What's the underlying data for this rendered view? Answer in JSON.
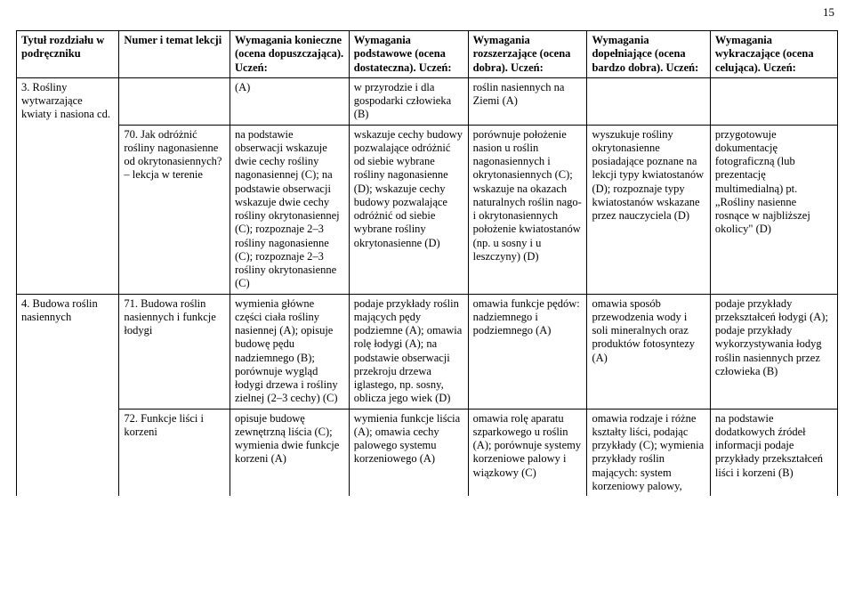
{
  "page_number": "15",
  "headers": {
    "h1": "Tytuł rozdziału w podręczniku",
    "h2": "Numer i temat lekcji",
    "h3": "Wymagania konieczne (ocena dopuszczająca). Uczeń:",
    "h4": "Wymagania podstawowe (ocena dostateczna). Uczeń:",
    "h5": "Wymagania rozszerzające (ocena dobra). Uczeń:",
    "h6": "Wymagania dopełniające (ocena bardzo dobra). Uczeń:",
    "h7": "Wymagania wykraczające (ocena celująca). Uczeń:"
  },
  "r1": {
    "c1": "3. Rośliny wytwarzające kwiaty i nasiona cd.",
    "c3": "(A)",
    "c4": "w przyrodzie i dla gospodarki człowieka (B)",
    "c5": "roślin nasiennych na Ziemi (A)"
  },
  "r2": {
    "c2": "70. Jak odróżnić rośliny nagonasienne od okrytonasiennych? – lekcja w terenie",
    "c3": "na podstawie obserwacji wskazuje dwie cechy rośliny nagonasiennej (C); na podstawie obserwacji wskazuje dwie cechy rośliny okrytonasiennej (C); rozpoznaje 2–3 rośliny nagonasienne (C); rozpoznaje 2–3 rośliny okrytonasienne (C)",
    "c4": "wskazuje cechy budowy pozwalające odróżnić od siebie wybrane rośliny nagonasienne (D); wskazuje cechy budowy pozwalające odróżnić od siebie wybrane rośliny okrytonasienne (D)",
    "c5": "porównuje położenie nasion u roślin nagonasiennych i okrytonasiennych (C); wskazuje na okazach naturalnych roślin nago- i okrytonasiennych położenie kwiatostanów (np. u sosny i u leszczyny) (D)",
    "c6": "wyszukuje rośliny okrytonasienne posiadające poznane na lekcji typy kwiatostanów (D); rozpoznaje typy kwiatostanów wskazane przez nauczyciela (D)",
    "c7": "przygotowuje dokumentację fotograficzną (lub prezentację multimedialną) pt. „Rośliny nasienne rosnące w najbliższej okolicy\" (D)"
  },
  "r3": {
    "c1": "4. Budowa roślin nasiennych",
    "c2": "71. Budowa roślin nasiennych i funkcje łodygi",
    "c3": "wymienia główne części ciała rośliny nasiennej (A); opisuje budowę pędu nadziemnego (B); porównuje wygląd łodygi drzewa i rośliny zielnej (2–3 cechy) (C)",
    "c4": "podaje przykłady roślin mających pędy podziemne (A); omawia rolę łodygi (A); na podstawie obserwacji przekroju drzewa iglastego, np. sosny, oblicza jego wiek (D)",
    "c5": "omawia funkcje pędów: nadziemnego i podziemnego (A)",
    "c6": "omawia sposób przewodzenia wody i soli mineralnych oraz produktów fotosyntezy (A)",
    "c7": "podaje przykłady przekształceń łodygi (A); podaje przykłady wykorzystywania łodyg roślin nasiennych przez człowieka (B)"
  },
  "r4": {
    "c2": "72. Funkcje liści i korzeni",
    "c3": "opisuje budowę zewnętrzną liścia (C); wymienia dwie funkcje korzeni (A)",
    "c4": "wymienia funkcje liścia (A); omawia cechy palowego systemu korzeniowego (A)",
    "c5": "omawia rolę aparatu szparkowego u roślin (A); porównuje systemy korzeniowe palowy i wiązkowy (C)",
    "c6": "omawia rodzaje i różne kształty liści, podając przykłady (C); wymienia przykłady roślin mających: system korzeniowy palowy,",
    "c7": "na podstawie dodatkowych źródeł informacji podaje przykłady przekształceń liści i korzeni (B)"
  }
}
